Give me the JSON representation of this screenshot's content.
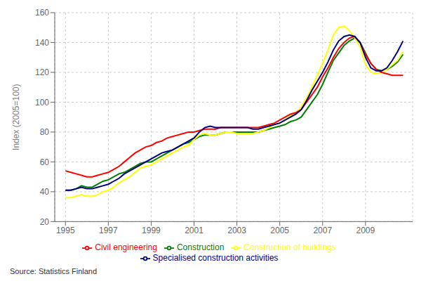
{
  "chart_data": {
    "type": "line",
    "ylabel": "Index (2005=100)",
    "annotations": [
      "Source: Statistics Finland"
    ],
    "xlim": [
      1994.5,
      2011.2
    ],
    "ylim": [
      20,
      160
    ],
    "yticks": [
      20,
      40,
      60,
      80,
      100,
      120,
      140,
      160
    ],
    "xticks": [
      1995,
      1997,
      1999,
      2001,
      2003,
      2005,
      2007,
      2009
    ],
    "grid": true,
    "legend": "bottom",
    "x": [
      1995.0,
      1995.25,
      1995.5,
      1995.75,
      1996.0,
      1996.25,
      1996.5,
      1996.75,
      1997.0,
      1997.25,
      1997.5,
      1997.75,
      1998.0,
      1998.25,
      1998.5,
      1998.75,
      1999.0,
      1999.25,
      1999.5,
      1999.75,
      2000.0,
      2000.25,
      2000.5,
      2000.75,
      2001.0,
      2001.25,
      2001.5,
      2001.75,
      2002.0,
      2002.25,
      2002.5,
      2002.75,
      2003.0,
      2003.25,
      2003.5,
      2003.75,
      2004.0,
      2004.25,
      2004.5,
      2004.75,
      2005.0,
      2005.25,
      2005.5,
      2005.75,
      2006.0,
      2006.25,
      2006.5,
      2006.75,
      2007.0,
      2007.25,
      2007.5,
      2007.75,
      2008.0,
      2008.25,
      2008.5,
      2008.75,
      2009.0,
      2009.25,
      2009.5,
      2009.75,
      2010.0,
      2010.25,
      2010.5,
      2010.75
    ],
    "series": [
      {
        "name": "Construction",
        "color": "#008000",
        "values": [
          41,
          41,
          42,
          44,
          43,
          43,
          45,
          47,
          48,
          50,
          52,
          53,
          55,
          57,
          59,
          60,
          60,
          62,
          64,
          66,
          68,
          70,
          72,
          73,
          75,
          77,
          78,
          78,
          78,
          79,
          80,
          80,
          80,
          80,
          80,
          80,
          80,
          81,
          82,
          83,
          84,
          85,
          87,
          88,
          90,
          95,
          100,
          105,
          112,
          120,
          128,
          133,
          138,
          141,
          143,
          140,
          133,
          126,
          122,
          121,
          122,
          124,
          127,
          132
        ]
      },
      {
        "name": "Construction of buildings",
        "color": "#FFFF00",
        "values": [
          36,
          36,
          37,
          38,
          37,
          37,
          38,
          40,
          41,
          43,
          46,
          48,
          50,
          53,
          56,
          57,
          58,
          60,
          62,
          64,
          66,
          68,
          70,
          71,
          75,
          78,
          79,
          78,
          78,
          79,
          80,
          80,
          79,
          79,
          79,
          79,
          80,
          81,
          83,
          85,
          86,
          88,
          91,
          93,
          97,
          103,
          110,
          118,
          126,
          135,
          145,
          150,
          151,
          148,
          143,
          137,
          125,
          120,
          119,
          120,
          122,
          125,
          128,
          134
        ]
      },
      {
        "name": "Civil engineering",
        "color": "#FF0000",
        "values": [
          54,
          53,
          52,
          51,
          50,
          50,
          51,
          52,
          53,
          55,
          57,
          60,
          63,
          66,
          68,
          70,
          71,
          73,
          74,
          76,
          77,
          78,
          79,
          80,
          80,
          81,
          82,
          82,
          82,
          83,
          83,
          83,
          83,
          83,
          83,
          83,
          83,
          84,
          85,
          86,
          88,
          90,
          92,
          93,
          95,
          100,
          105,
          110,
          117,
          123,
          130,
          136,
          140,
          143,
          144,
          140,
          132,
          126,
          122,
          120,
          119,
          118,
          118,
          118
        ]
      },
      {
        "name": "Specialised construction activities",
        "color": "#000080",
        "values": [
          41,
          41,
          42,
          43,
          42,
          42,
          43,
          44,
          45,
          47,
          49,
          52,
          54,
          56,
          58,
          60,
          62,
          64,
          66,
          67,
          68,
          70,
          72,
          74,
          76,
          80,
          83,
          84,
          83,
          83,
          83,
          83,
          83,
          83,
          83,
          82,
          82,
          83,
          84,
          85,
          86,
          88,
          90,
          92,
          95,
          101,
          108,
          114,
          120,
          127,
          135,
          141,
          144,
          145,
          144,
          140,
          130,
          123,
          121,
          121,
          123,
          128,
          134,
          141
        ]
      }
    ]
  }
}
